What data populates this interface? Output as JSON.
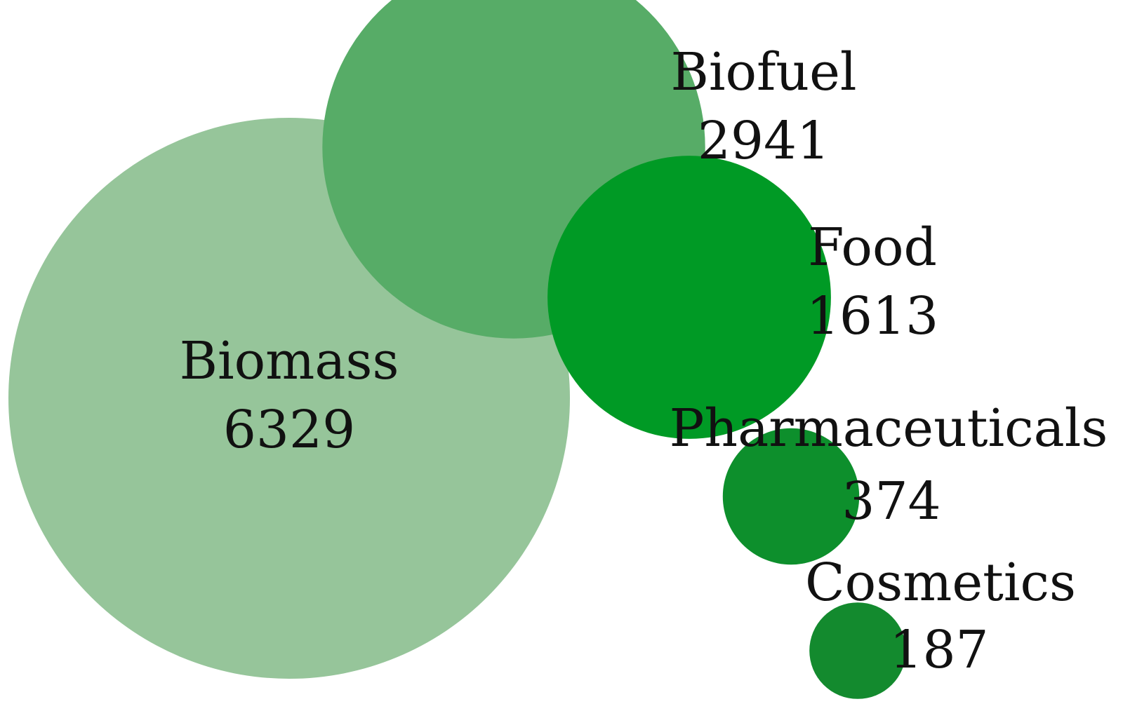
{
  "chart_data": {
    "type": "bubble",
    "series": [
      {
        "name": "Biomass",
        "value": 6329,
        "color": "#96c59a"
      },
      {
        "name": "Biofuel",
        "value": 2941,
        "color": "#57ac67"
      },
      {
        "name": "Food",
        "value": 1613,
        "color": "#009a25"
      },
      {
        "name": "Pharmaceuticals",
        "value": 374,
        "color": "#0d8f2c"
      },
      {
        "name": "Cosmetics",
        "value": 187,
        "color": "#138a2e"
      }
    ]
  }
}
